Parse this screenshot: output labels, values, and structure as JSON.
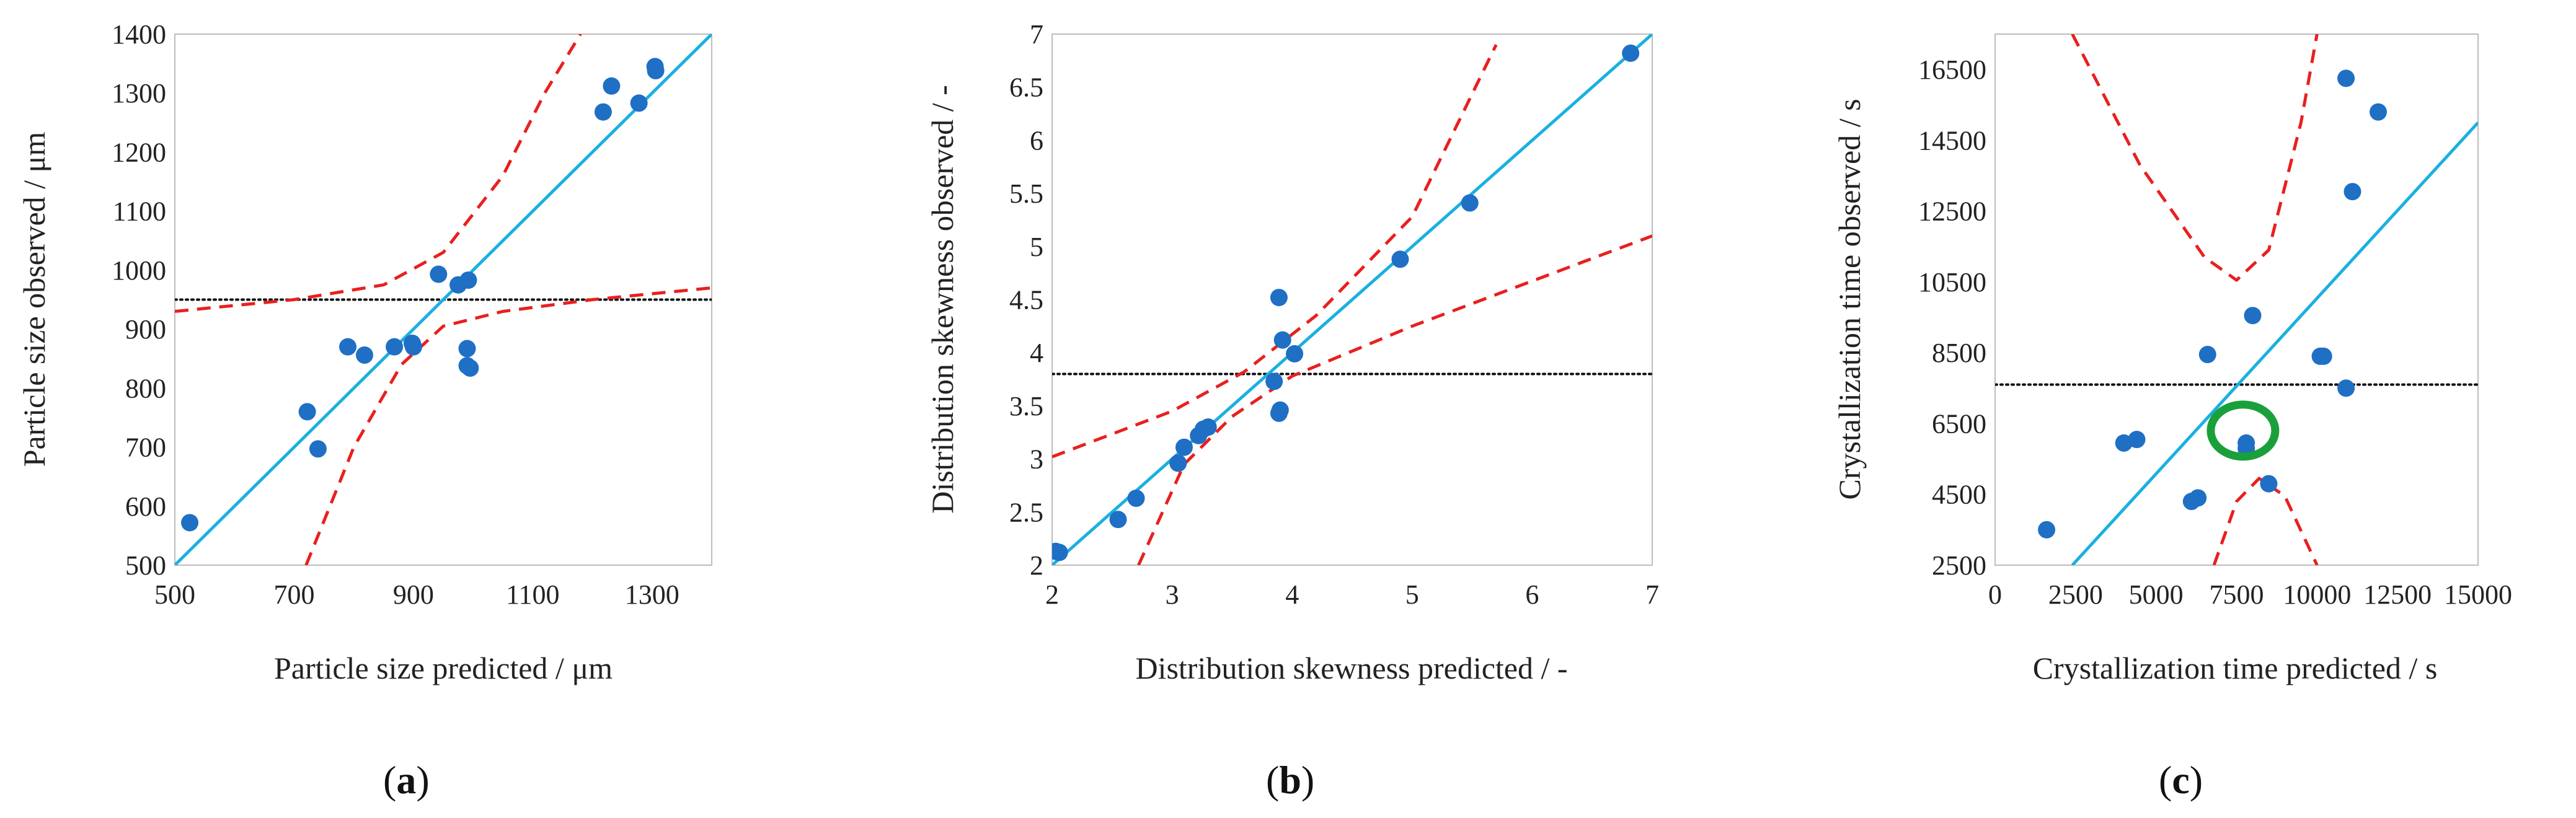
{
  "figure": {
    "panel_labels": [
      {
        "open": "(",
        "letter": "a",
        "close": ")"
      },
      {
        "open": "(",
        "letter": "b",
        "close": ")"
      },
      {
        "open": "(",
        "letter": "c",
        "close": ")"
      }
    ]
  },
  "chart_data": [
    {
      "id": "a",
      "type": "scatter",
      "xlabel": "Particle size predicted / μm",
      "ylabel": "Particle size observed / μm",
      "xlim": [
        500,
        1400
      ],
      "ylim": [
        500,
        1400
      ],
      "xticks": [
        500,
        700,
        900,
        1100,
        1300
      ],
      "yticks": [
        500,
        600,
        700,
        800,
        900,
        1000,
        1100,
        1200,
        1300,
        1400
      ],
      "mean_line": 950,
      "grid": false,
      "points": [
        {
          "x": 525,
          "y": 572
        },
        {
          "x": 722,
          "y": 760
        },
        {
          "x": 740,
          "y": 697
        },
        {
          "x": 790,
          "y": 870
        },
        {
          "x": 818,
          "y": 856
        },
        {
          "x": 868,
          "y": 870
        },
        {
          "x": 898,
          "y": 876
        },
        {
          "x": 900,
          "y": 870
        },
        {
          "x": 942,
          "y": 993
        },
        {
          "x": 975,
          "y": 975
        },
        {
          "x": 992,
          "y": 983
        },
        {
          "x": 990,
          "y": 867
        },
        {
          "x": 990,
          "y": 838
        },
        {
          "x": 995,
          "y": 834
        },
        {
          "x": 1218,
          "y": 1268
        },
        {
          "x": 1232,
          "y": 1312
        },
        {
          "x": 1278,
          "y": 1283
        },
        {
          "x": 1305,
          "y": 1345
        },
        {
          "x": 1306,
          "y": 1338
        }
      ],
      "fit_line": [
        [
          500,
          500
        ],
        [
          1400,
          1400
        ]
      ],
      "ci_upper": [
        [
          500,
          930
        ],
        [
          700,
          950
        ],
        [
          850,
          975
        ],
        [
          950,
          1030
        ],
        [
          1050,
          1160
        ],
        [
          1120,
          1300
        ],
        [
          1180,
          1400
        ]
      ],
      "ci_lower": [
        [
          720,
          500
        ],
        [
          800,
          700
        ],
        [
          880,
          840
        ],
        [
          950,
          905
        ],
        [
          1050,
          930
        ],
        [
          1200,
          950
        ],
        [
          1400,
          970
        ]
      ],
      "series_colors": {
        "points": "#1f6fc5",
        "fit": "#1ab0e0",
        "ci": "#e8201f",
        "mean": "#111111"
      }
    },
    {
      "id": "b",
      "type": "scatter",
      "xlabel": "Distribution skewness predicted / -",
      "ylabel": "Distribution skewness observed / -",
      "xlim": [
        2,
        7
      ],
      "ylim": [
        2,
        7
      ],
      "xticks": [
        2,
        3,
        4,
        5,
        6,
        7
      ],
      "yticks": [
        2,
        2.5,
        3,
        3.5,
        4,
        4.5,
        5,
        5.5,
        6,
        6.5,
        7
      ],
      "mean_line": 3.8,
      "grid": false,
      "points": [
        {
          "x": 2.03,
          "y": 2.13
        },
        {
          "x": 2.06,
          "y": 2.12
        },
        {
          "x": 2.55,
          "y": 2.43
        },
        {
          "x": 2.7,
          "y": 2.63
        },
        {
          "x": 3.05,
          "y": 2.96
        },
        {
          "x": 3.1,
          "y": 3.11
        },
        {
          "x": 3.22,
          "y": 3.22
        },
        {
          "x": 3.26,
          "y": 3.28
        },
        {
          "x": 3.3,
          "y": 3.3
        },
        {
          "x": 3.85,
          "y": 3.73
        },
        {
          "x": 3.89,
          "y": 3.43
        },
        {
          "x": 3.9,
          "y": 3.46
        },
        {
          "x": 3.89,
          "y": 4.52
        },
        {
          "x": 3.92,
          "y": 4.12
        },
        {
          "x": 4.02,
          "y": 3.99
        },
        {
          "x": 4.9,
          "y": 4.88
        },
        {
          "x": 5.48,
          "y": 5.41
        },
        {
          "x": 6.82,
          "y": 6.82
        }
      ],
      "fit_line": [
        [
          2,
          2
        ],
        [
          7,
          7
        ]
      ],
      "ci_upper": [
        [
          2,
          3.02
        ],
        [
          3,
          3.45
        ],
        [
          3.6,
          3.82
        ],
        [
          4.2,
          4.35
        ],
        [
          5,
          5.28
        ],
        [
          5.7,
          6.9
        ]
      ],
      "ci_lower": [
        [
          2.72,
          2
        ],
        [
          3.1,
          2.95
        ],
        [
          3.5,
          3.4
        ],
        [
          4,
          3.78
        ],
        [
          5,
          4.25
        ],
        [
          7,
          5.1
        ]
      ],
      "series_colors": {
        "points": "#1f6fc5",
        "fit": "#1ab0e0",
        "ci": "#e8201f",
        "mean": "#111111"
      }
    },
    {
      "id": "c",
      "type": "scatter",
      "xlabel": "Crystallization time predicted / s",
      "ylabel": "Crystallization time observed / s",
      "xlim": [
        0,
        15000
      ],
      "ylim": [
        2500,
        17500
      ],
      "xticks": [
        0,
        2500,
        5000,
        7500,
        10000,
        12500,
        15000
      ],
      "yticks": [
        2500,
        4500,
        6500,
        8500,
        10500,
        12500,
        14500,
        16500
      ],
      "mean_line": 7600,
      "grid": false,
      "points": [
        {
          "x": 1600,
          "y": 3500
        },
        {
          "x": 4000,
          "y": 5950
        },
        {
          "x": 4400,
          "y": 6050
        },
        {
          "x": 6100,
          "y": 4300
        },
        {
          "x": 6300,
          "y": 4400
        },
        {
          "x": 6600,
          "y": 8450
        },
        {
          "x": 7800,
          "y": 5950
        },
        {
          "x": 7800,
          "y": 5800
        },
        {
          "x": 8000,
          "y": 9550
        },
        {
          "x": 8500,
          "y": 4800
        },
        {
          "x": 10100,
          "y": 8400
        },
        {
          "x": 10200,
          "y": 8400
        },
        {
          "x": 10900,
          "y": 7500
        },
        {
          "x": 10900,
          "y": 16250
        },
        {
          "x": 11100,
          "y": 13050
        },
        {
          "x": 11900,
          "y": 15300
        }
      ],
      "fit_line": [
        [
          2400,
          2500
        ],
        [
          15000,
          15000
        ]
      ],
      "ci_upper": [
        [
          2400,
          17500
        ],
        [
          4500,
          13800
        ],
        [
          6500,
          11200
        ],
        [
          7500,
          10550
        ],
        [
          8500,
          11400
        ],
        [
          9500,
          15000
        ],
        [
          10000,
          17500
        ]
      ],
      "ci_lower": [
        [
          6800,
          2500
        ],
        [
          7500,
          4300
        ],
        [
          8200,
          4950
        ],
        [
          9000,
          4450
        ],
        [
          10000,
          2500
        ]
      ],
      "highlight": {
        "x": 7700,
        "y": 6300,
        "color": "#1aa03a"
      },
      "series_colors": {
        "points": "#1f6fc5",
        "fit": "#1ab0e0",
        "ci": "#e8201f",
        "mean": "#111111"
      }
    }
  ]
}
